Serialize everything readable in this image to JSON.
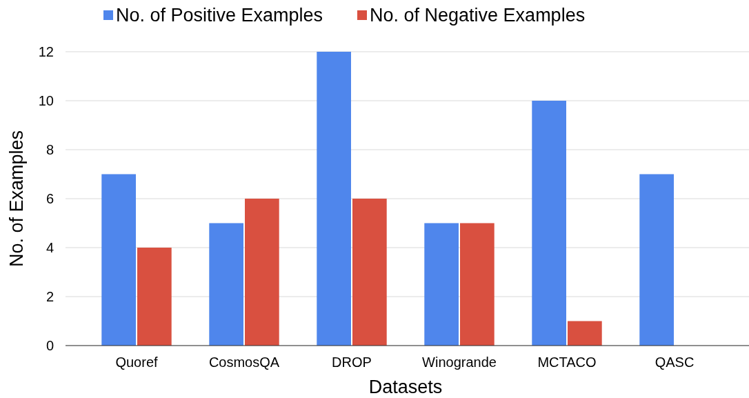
{
  "chart_data": {
    "type": "bar",
    "xlabel": "Datasets",
    "ylabel": "No. of Examples",
    "categories": [
      "Quoref",
      "CosmosQA",
      "DROP",
      "Winogrande",
      "MCTACO",
      "QASC"
    ],
    "series": [
      {
        "name": "No. of Positive Examples",
        "color": "#4f86ec",
        "values": [
          7,
          5,
          12,
          5,
          10,
          7
        ]
      },
      {
        "name": "No. of Negative Examples",
        "color": "#d95040",
        "values": [
          4,
          6,
          6,
          5,
          1,
          0
        ]
      }
    ],
    "ylim": [
      0,
      12
    ],
    "yticks": [
      0,
      2,
      4,
      6,
      8,
      10,
      12
    ],
    "grid": "y",
    "legend": "top"
  }
}
